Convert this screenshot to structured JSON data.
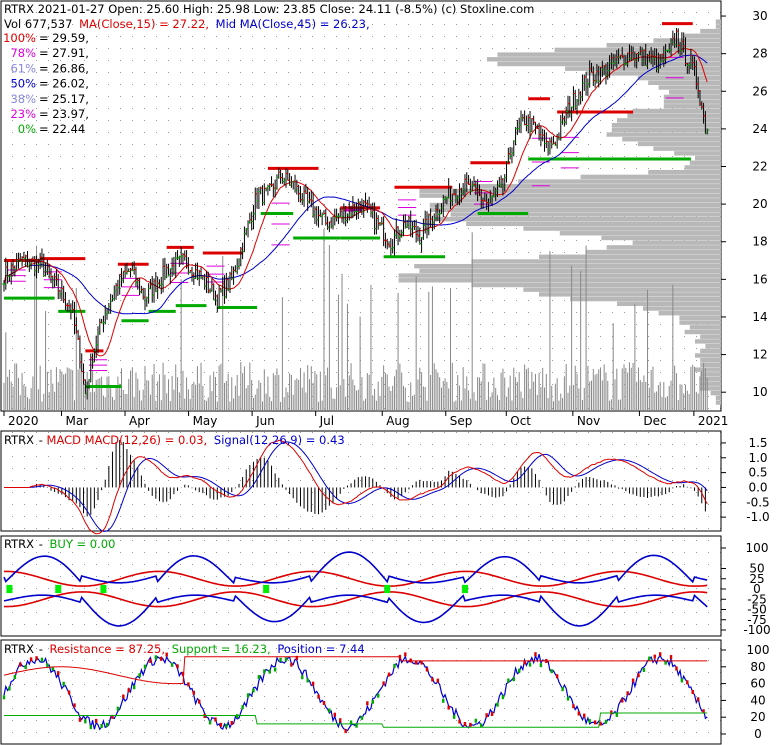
{
  "colors": {
    "up": "#00aa00",
    "down": "#dd0000",
    "ma15": "#dd0000",
    "ma45": "#0000cc",
    "volume": "#888888",
    "profile": "#b8b8b8",
    "fib": "#dd00dd",
    "buy": "#00ee00"
  },
  "header": {
    "line1": "RTRX  2021-01-27 Open: 25.60  High: 25.98  Low: 23.85  Close: 24.11 (-8.5%)  (c) Stoxline.com",
    "vol": "Vol 677,537",
    "ma15": "MA(Close,15) = 27.22,",
    "ma45": "Mid MA(Close,45) = 26.23,"
  },
  "fib_levels": [
    {
      "pct": "100%",
      "value": "= 29.59,",
      "color": "#dd0000",
      "v": 29.59
    },
    {
      "pct": "78%",
      "value": "= 27.91,",
      "color": "#dd00dd",
      "v": 27.91
    },
    {
      "pct": "61%",
      "value": "= 26.86,",
      "color": "#8888dd",
      "v": 26.86
    },
    {
      "pct": "50%",
      "value": "= 26.02,",
      "color": "#0000cc",
      "v": 26.02
    },
    {
      "pct": "38%",
      "value": "= 25.17,",
      "color": "#8888dd",
      "v": 25.17
    },
    {
      "pct": "23%",
      "value": "= 23.97,",
      "color": "#dd00dd",
      "v": 23.97
    },
    {
      "pct": "0%",
      "value": "= 22.44",
      "color": "#00aa00",
      "v": 22.44
    }
  ],
  "macd_panel": {
    "ticker": "RTRX",
    "label": "MACD",
    "macd": "MACD(12,26) = 0.03,",
    "signal": "Signal(12,26,9) = 0.43",
    "yticks": [
      "1.5",
      "1.0",
      "0.5",
      "0.0",
      "-0.5",
      "-1.0"
    ]
  },
  "buy_panel": {
    "ticker": "RTRX",
    "label": "BUY = 0.00",
    "yticks": [
      "100",
      "50",
      "25",
      "0",
      "-25",
      "-50",
      "-75",
      "-100"
    ]
  },
  "res_panel": {
    "ticker": "RTRX",
    "resistance": "Resistance = 87.25,",
    "support": "Support = 16.23,",
    "position": "Position = 7.44",
    "yticks": [
      "100",
      "80",
      "60",
      "40",
      "20",
      "0"
    ]
  },
  "chart_data": {
    "type": "line",
    "title": "RTRX  2021-01-27 Open: 25.60  High: 25.98  Low: 23.85  Close: 24.11 (-8.5%)",
    "x_labels": [
      "2020",
      "Mar",
      "Apr",
      "May",
      "Jun",
      "Jul",
      "Aug",
      "Sep",
      "Oct",
      "Nov",
      "Dec",
      "2021"
    ],
    "y_ticks": [
      "30",
      "28",
      "26",
      "24",
      "22",
      "20",
      "18",
      "16",
      "14",
      "12",
      "10"
    ],
    "ylim": [
      9,
      30.8
    ],
    "close_keypoints": [
      {
        "d": 0,
        "c": 16.2
      },
      {
        "d": 10,
        "c": 17.0
      },
      {
        "d": 20,
        "c": 16.8
      },
      {
        "d": 30,
        "c": 15.5
      },
      {
        "d": 37,
        "c": 14.5
      },
      {
        "d": 42,
        "c": 12.0
      },
      {
        "d": 45,
        "c": 9.9
      },
      {
        "d": 49,
        "c": 12.0
      },
      {
        "d": 55,
        "c": 14.0
      },
      {
        "d": 63,
        "c": 15.8
      },
      {
        "d": 70,
        "c": 16.5
      },
      {
        "d": 78,
        "c": 15.0
      },
      {
        "d": 90,
        "c": 16.5
      },
      {
        "d": 100,
        "c": 17.0
      },
      {
        "d": 110,
        "c": 16.0
      },
      {
        "d": 118,
        "c": 15.0
      },
      {
        "d": 126,
        "c": 16.0
      },
      {
        "d": 134,
        "c": 18.5
      },
      {
        "d": 140,
        "c": 20.5
      },
      {
        "d": 146,
        "c": 20.5
      },
      {
        "d": 153,
        "c": 21.5
      },
      {
        "d": 160,
        "c": 21.0
      },
      {
        "d": 168,
        "c": 20.0
      },
      {
        "d": 178,
        "c": 19.0
      },
      {
        "d": 188,
        "c": 19.5
      },
      {
        "d": 198,
        "c": 20.0
      },
      {
        "d": 206,
        "c": 19.0
      },
      {
        "d": 214,
        "c": 18.0
      },
      {
        "d": 222,
        "c": 19.0
      },
      {
        "d": 230,
        "c": 18.3
      },
      {
        "d": 238,
        "c": 19.5
      },
      {
        "d": 246,
        "c": 20.5
      },
      {
        "d": 254,
        "c": 21.0
      },
      {
        "d": 262,
        "c": 20.5
      },
      {
        "d": 268,
        "c": 20.0
      },
      {
        "d": 276,
        "c": 21.0
      },
      {
        "d": 282,
        "c": 23.5
      },
      {
        "d": 288,
        "c": 24.5
      },
      {
        "d": 294,
        "c": 24.0
      },
      {
        "d": 300,
        "c": 23.0
      },
      {
        "d": 306,
        "c": 23.5
      },
      {
        "d": 312,
        "c": 25.0
      },
      {
        "d": 318,
        "c": 26.0
      },
      {
        "d": 324,
        "c": 26.8
      },
      {
        "d": 330,
        "c": 27.0
      },
      {
        "d": 338,
        "c": 27.5
      },
      {
        "d": 346,
        "c": 28.0
      },
      {
        "d": 354,
        "c": 27.8
      },
      {
        "d": 362,
        "c": 27.5
      },
      {
        "d": 368,
        "c": 28.0
      },
      {
        "d": 372,
        "c": 29.0
      },
      {
        "d": 376,
        "c": 28.0
      },
      {
        "d": 380,
        "c": 27.5
      },
      {
        "d": 384,
        "c": 26.3
      },
      {
        "d": 388,
        "c": 24.1
      }
    ],
    "resistance_lines": [
      {
        "d0": 0,
        "d1": 20,
        "v": 17.0
      },
      {
        "d0": 20,
        "d1": 45,
        "v": 17.1
      },
      {
        "d0": 45,
        "d1": 55,
        "v": 12.2
      },
      {
        "d0": 63,
        "d1": 80,
        "v": 16.8
      },
      {
        "d0": 90,
        "d1": 105,
        "v": 17.7
      },
      {
        "d0": 110,
        "d1": 132,
        "v": 17.4
      },
      {
        "d0": 146,
        "d1": 174,
        "v": 21.9
      },
      {
        "d0": 186,
        "d1": 208,
        "v": 19.8
      },
      {
        "d0": 216,
        "d1": 248,
        "v": 20.9
      },
      {
        "d0": 258,
        "d1": 280,
        "v": 22.2
      },
      {
        "d0": 290,
        "d1": 302,
        "v": 25.6
      },
      {
        "d0": 306,
        "d1": 348,
        "v": 24.9
      },
      {
        "d0": 364,
        "d1": 381,
        "v": 29.6
      }
    ],
    "support_lines": [
      {
        "d0": 0,
        "d1": 28,
        "v": 15.0
      },
      {
        "d0": 30,
        "d1": 45,
        "v": 14.3
      },
      {
        "d0": 45,
        "d1": 65,
        "v": 10.3
      },
      {
        "d0": 65,
        "d1": 80,
        "v": 13.8
      },
      {
        "d0": 80,
        "d1": 95,
        "v": 14.3
      },
      {
        "d0": 95,
        "d1": 112,
        "v": 14.6
      },
      {
        "d0": 118,
        "d1": 140,
        "v": 14.5
      },
      {
        "d0": 142,
        "d1": 160,
        "v": 19.5
      },
      {
        "d0": 160,
        "d1": 186,
        "v": 18.2
      },
      {
        "d0": 186,
        "d1": 208,
        "v": 18.2
      },
      {
        "d0": 210,
        "d1": 244,
        "v": 17.2
      },
      {
        "d0": 262,
        "d1": 290,
        "v": 19.5
      },
      {
        "d0": 290,
        "d1": 380,
        "v": 22.4
      }
    ]
  }
}
